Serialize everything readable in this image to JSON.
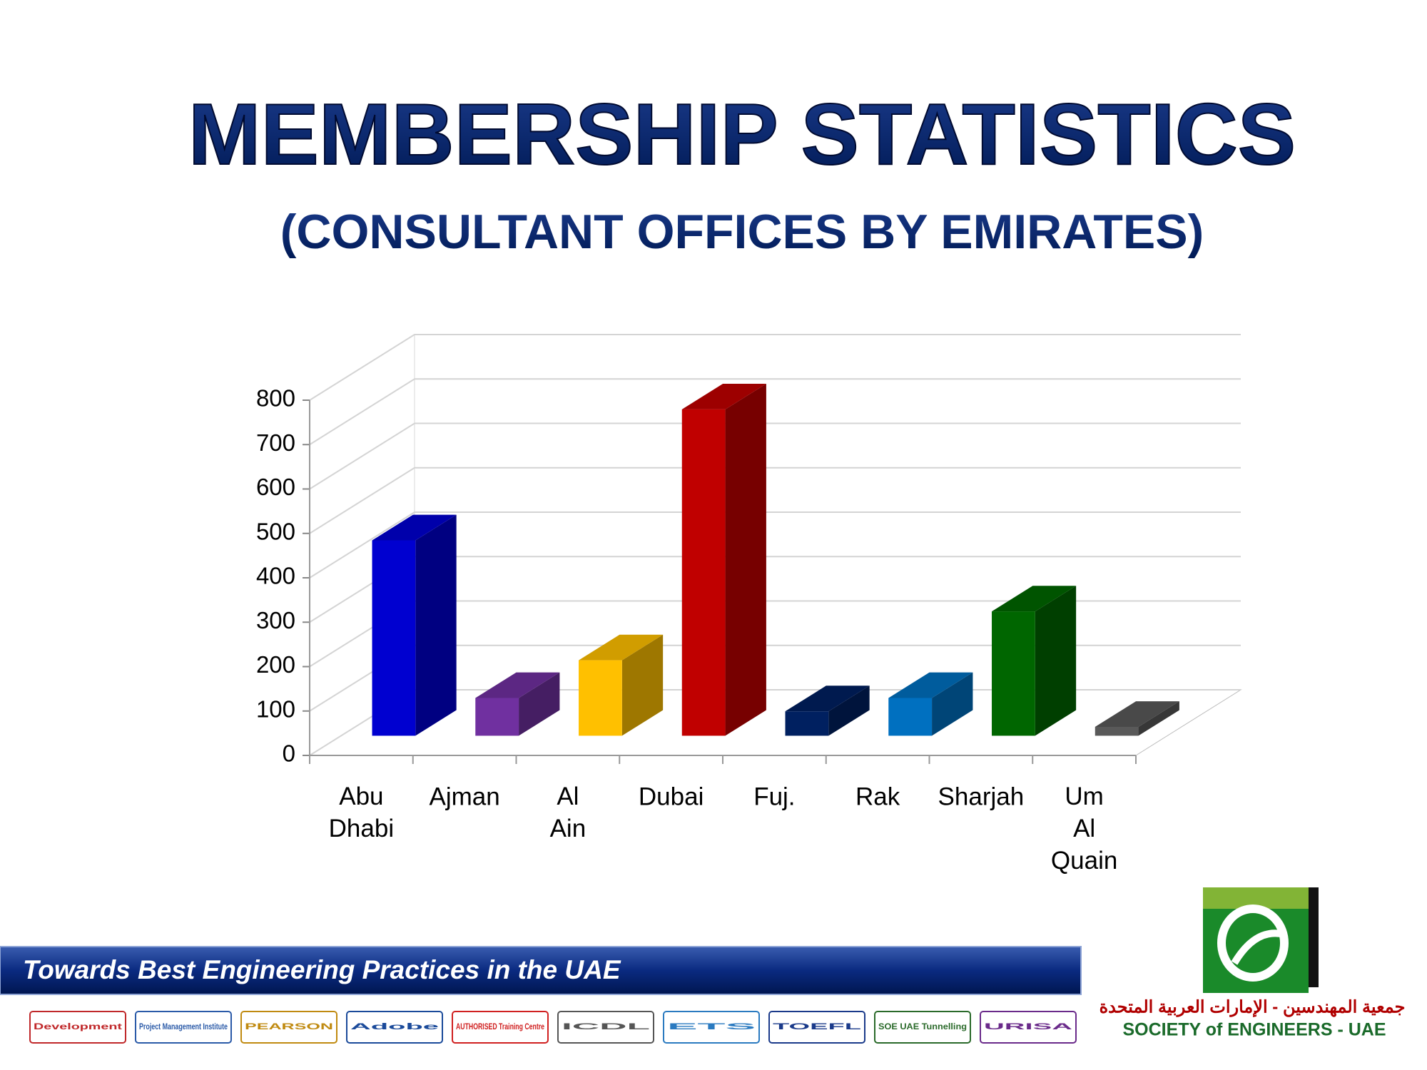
{
  "chart_data": {
    "type": "bar3d",
    "title": "MEMBERSHIP STATISTICS",
    "subtitle": "(CONSULTANT OFFICES BY EMIRATES)",
    "categories": [
      "Abu Dhabi",
      "Ajman",
      "Al Ain",
      "Dubai",
      "Fuj.",
      "Rak",
      "Sharjah",
      "Um Al Quain"
    ],
    "values": [
      440,
      85,
      170,
      735,
      55,
      85,
      280,
      20
    ],
    "colors": [
      "#0000d0",
      "#7030a0",
      "#ffc000",
      "#c00000",
      "#002060",
      "#0070c0",
      "#006600",
      "#595959"
    ],
    "ylim": [
      0,
      800
    ],
    "yticks": [
      0,
      100,
      200,
      300,
      400,
      500,
      600,
      700,
      800
    ],
    "grid": true
  },
  "footer": {
    "tagline": "Towards Best Engineering Practices in the UAE",
    "org_arabic": "جمعية المهندسين - الإمارات العربية المتحدة",
    "org_english": "SOCIETY of ENGINEERS - UAE",
    "partner_logos": [
      "Development",
      "Project Management Institute",
      "PEARSON",
      "Adobe",
      "AUTHORISED Training Centre",
      "ICDL",
      "ETS",
      "TOEFL",
      "SOE UAE Tunnelling",
      "URISA"
    ]
  }
}
